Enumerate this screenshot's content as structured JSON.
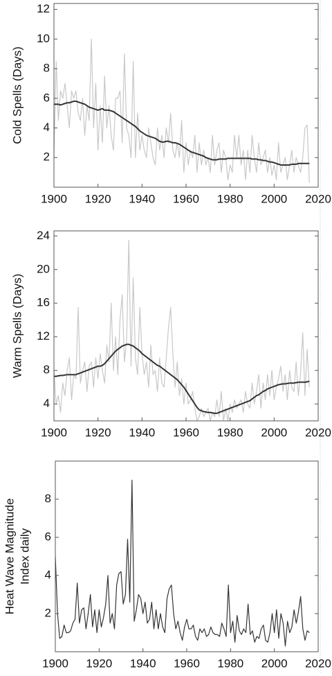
{
  "chart_data": [
    {
      "type": "line",
      "ylabel": [
        "Cold Spells (Days)"
      ],
      "x": [
        1900,
        1901,
        1902,
        1903,
        1904,
        1905,
        1906,
        1907,
        1908,
        1909,
        1910,
        1911,
        1912,
        1913,
        1914,
        1915,
        1916,
        1917,
        1918,
        1919,
        1920,
        1921,
        1922,
        1923,
        1924,
        1925,
        1926,
        1927,
        1928,
        1929,
        1930,
        1931,
        1932,
        1933,
        1934,
        1935,
        1936,
        1937,
        1938,
        1939,
        1940,
        1941,
        1942,
        1943,
        1944,
        1945,
        1946,
        1947,
        1948,
        1949,
        1950,
        1951,
        1952,
        1953,
        1954,
        1955,
        1956,
        1957,
        1958,
        1959,
        1960,
        1961,
        1962,
        1963,
        1964,
        1965,
        1966,
        1967,
        1968,
        1969,
        1970,
        1971,
        1972,
        1973,
        1974,
        1975,
        1976,
        1977,
        1978,
        1979,
        1980,
        1981,
        1982,
        1983,
        1984,
        1985,
        1986,
        1987,
        1988,
        1989,
        1990,
        1991,
        1992,
        1993,
        1994,
        1995,
        1996,
        1997,
        1998,
        1999,
        2000,
        2001,
        2002,
        2003,
        2004,
        2005,
        2006,
        2007,
        2008,
        2009,
        2010,
        2011,
        2012,
        2013,
        2014,
        2015,
        2016
      ],
      "series": [
        {
          "color": "#c8c8c8",
          "width": 1.2,
          "values": [
            2.0,
            8.5,
            4.5,
            6.5,
            6.0,
            7.0,
            5.5,
            4.0,
            6.5,
            6.0,
            6.5,
            5.0,
            4.5,
            6.0,
            3.5,
            5.5,
            4.5,
            10.0,
            4.0,
            7.0,
            2.5,
            5.5,
            3.0,
            7.5,
            4.0,
            5.5,
            3.5,
            2.5,
            6.0,
            6.0,
            6.5,
            3.0,
            9.0,
            4.0,
            3.5,
            2.0,
            8.5,
            2.0,
            5.0,
            2.5,
            3.5,
            2.5,
            2.0,
            4.0,
            3.0,
            2.0,
            1.5,
            4.0,
            2.5,
            3.5,
            2.0,
            4.0,
            3.0,
            5.0,
            2.5,
            2.0,
            3.0,
            2.0,
            4.5,
            1.0,
            3.0,
            1.5,
            2.5,
            2.0,
            3.5,
            1.0,
            3.0,
            1.5,
            2.5,
            1.5,
            2.0,
            1.0,
            3.5,
            1.5,
            2.5,
            3.0,
            1.0,
            2.5,
            2.0,
            0.5,
            1.5,
            1.0,
            3.5,
            2.0,
            3.5,
            1.5,
            2.5,
            0.5,
            2.5,
            1.0,
            3.5,
            2.0,
            1.0,
            3.0,
            1.5,
            2.0,
            2.5,
            1.0,
            2.0,
            0.8,
            1.5,
            0.5,
            3.0,
            1.0,
            1.5,
            2.0,
            0.5,
            1.5,
            2.5,
            1.0,
            2.0,
            1.5,
            1.0,
            2.0,
            4.0,
            4.2,
            0.3
          ]
        },
        {
          "color": "#333333",
          "width": 2,
          "values": [
            5.6,
            5.6,
            5.6,
            5.55,
            5.6,
            5.65,
            5.7,
            5.7,
            5.75,
            5.8,
            5.8,
            5.75,
            5.7,
            5.65,
            5.6,
            5.5,
            5.4,
            5.35,
            5.3,
            5.25,
            5.2,
            5.25,
            5.3,
            5.2,
            5.2,
            5.2,
            5.15,
            5.1,
            5.0,
            4.9,
            4.8,
            4.7,
            4.6,
            4.5,
            4.4,
            4.3,
            4.2,
            4.1,
            3.95,
            3.8,
            3.7,
            3.6,
            3.5,
            3.45,
            3.4,
            3.35,
            3.3,
            3.2,
            3.1,
            3.05,
            3.05,
            3.1,
            3.1,
            3.05,
            3.0,
            3.0,
            2.95,
            2.9,
            2.8,
            2.7,
            2.6,
            2.5,
            2.4,
            2.35,
            2.3,
            2.25,
            2.2,
            2.15,
            2.1,
            2.0,
            1.95,
            1.9,
            1.85,
            1.85,
            1.85,
            1.9,
            1.9,
            1.9,
            1.9,
            1.95,
            1.95,
            1.95,
            1.95,
            1.95,
            1.95,
            1.95,
            1.95,
            1.95,
            1.95,
            1.95,
            1.9,
            1.9,
            1.9,
            1.85,
            1.85,
            1.8,
            1.8,
            1.75,
            1.7,
            1.7,
            1.65,
            1.6,
            1.55,
            1.5,
            1.5,
            1.5,
            1.5,
            1.5,
            1.55,
            1.55,
            1.55,
            1.6,
            1.6,
            1.6,
            1.6,
            1.6,
            1.6
          ]
        }
      ],
      "xlim": [
        1900,
        2020
      ],
      "xticks": [
        1900,
        1920,
        1940,
        1960,
        1980,
        2000,
        2020
      ],
      "ylim": [
        0,
        12.4
      ],
      "yticks": [
        2,
        4,
        6,
        8,
        10,
        12
      ]
    },
    {
      "type": "line",
      "ylabel": [
        "Warm Spells (Days)"
      ],
      "x": [
        1900,
        1901,
        1902,
        1903,
        1904,
        1905,
        1906,
        1907,
        1908,
        1909,
        1910,
        1911,
        1912,
        1913,
        1914,
        1915,
        1916,
        1917,
        1918,
        1919,
        1920,
        1921,
        1922,
        1923,
        1924,
        1925,
        1926,
        1927,
        1928,
        1929,
        1930,
        1931,
        1932,
        1933,
        1934,
        1935,
        1936,
        1937,
        1938,
        1939,
        1940,
        1941,
        1942,
        1943,
        1944,
        1945,
        1946,
        1947,
        1948,
        1949,
        1950,
        1951,
        1952,
        1953,
        1954,
        1955,
        1956,
        1957,
        1958,
        1959,
        1960,
        1961,
        1962,
        1963,
        1964,
        1965,
        1966,
        1967,
        1968,
        1969,
        1970,
        1971,
        1972,
        1973,
        1974,
        1975,
        1976,
        1977,
        1978,
        1979,
        1980,
        1981,
        1982,
        1983,
        1984,
        1985,
        1986,
        1987,
        1988,
        1989,
        1990,
        1991,
        1992,
        1993,
        1994,
        1995,
        1996,
        1997,
        1998,
        1999,
        2000,
        2001,
        2002,
        2003,
        2004,
        2005,
        2006,
        2007,
        2008,
        2009,
        2010,
        2011,
        2012,
        2013,
        2014,
        2015,
        2016
      ],
      "series": [
        {
          "color": "#c8c8c8",
          "width": 1.2,
          "values": [
            8.0,
            4.0,
            5.0,
            3.0,
            6.5,
            5.0,
            8.0,
            9.5,
            4.5,
            7.5,
            7.0,
            15.5,
            6.5,
            8.0,
            9.0,
            5.5,
            8.5,
            9.0,
            6.0,
            9.5,
            7.0,
            10.0,
            8.0,
            6.5,
            11.0,
            9.0,
            16.0,
            8.0,
            12.0,
            7.5,
            14.0,
            17.0,
            9.0,
            11.5,
            23.5,
            8.5,
            19.0,
            9.5,
            7.5,
            15.5,
            10.0,
            7.5,
            9.0,
            6.0,
            11.0,
            7.5,
            8.0,
            5.5,
            9.5,
            6.5,
            6.0,
            9.5,
            13.0,
            15.5,
            10.0,
            6.0,
            9.0,
            5.0,
            7.0,
            4.0,
            6.5,
            4.0,
            4.5,
            5.5,
            3.5,
            2.0,
            2.5,
            3.5,
            2.5,
            3.0,
            3.5,
            2.0,
            3.0,
            2.5,
            4.5,
            2.5,
            5.5,
            2.0,
            3.5,
            2.0,
            4.0,
            3.0,
            4.5,
            3.5,
            4.0,
            4.5,
            3.0,
            5.5,
            4.0,
            3.5,
            6.5,
            4.0,
            5.5,
            7.5,
            3.5,
            6.5,
            4.5,
            7.5,
            5.0,
            8.0,
            4.5,
            6.0,
            7.0,
            8.5,
            5.5,
            7.5,
            4.5,
            8.0,
            6.0,
            5.5,
            9.0,
            5.0,
            7.5,
            12.5,
            5.0,
            10.5,
            6.0
          ]
        },
        {
          "color": "#333333",
          "width": 2,
          "values": [
            7.3,
            7.3,
            7.35,
            7.4,
            7.4,
            7.45,
            7.5,
            7.5,
            7.5,
            7.5,
            7.5,
            7.6,
            7.7,
            7.8,
            7.9,
            8.0,
            8.1,
            8.2,
            8.3,
            8.4,
            8.5,
            8.5,
            8.6,
            8.8,
            9.1,
            9.4,
            9.7,
            10.0,
            10.3,
            10.5,
            10.7,
            10.9,
            11.0,
            11.1,
            11.1,
            11.0,
            10.9,
            10.7,
            10.5,
            10.3,
            10.0,
            9.8,
            9.6,
            9.4,
            9.2,
            9.0,
            8.8,
            8.6,
            8.5,
            8.3,
            8.1,
            7.9,
            7.7,
            7.5,
            7.3,
            7.1,
            6.9,
            6.6,
            6.3,
            6.0,
            5.6,
            5.2,
            4.8,
            4.4,
            4.0,
            3.6,
            3.3,
            3.2,
            3.1,
            3.05,
            3.0,
            3.0,
            2.95,
            2.9,
            2.9,
            3.0,
            3.1,
            3.2,
            3.3,
            3.4,
            3.5,
            3.6,
            3.7,
            3.8,
            3.9,
            4.0,
            4.1,
            4.2,
            4.3,
            4.4,
            4.6,
            4.8,
            5.0,
            5.1,
            5.3,
            5.5,
            5.6,
            5.8,
            5.9,
            6.0,
            6.1,
            6.2,
            6.3,
            6.35,
            6.4,
            6.4,
            6.45,
            6.5,
            6.5,
            6.5,
            6.55,
            6.6,
            6.6,
            6.6,
            6.6,
            6.65,
            6.7
          ]
        }
      ],
      "xlim": [
        1900,
        2020
      ],
      "xticks": [
        1900,
        1920,
        1940,
        1960,
        1980,
        2000,
        2020
      ],
      "ylim": [
        2,
        24.6
      ],
      "yticks": [
        4,
        8,
        12,
        16,
        20,
        24
      ]
    },
    {
      "type": "line",
      "ylabel": [
        "Heat Wave Magnitude",
        "Index daily"
      ],
      "x": [
        1900,
        1901,
        1902,
        1903,
        1904,
        1905,
        1906,
        1907,
        1908,
        1909,
        1910,
        1911,
        1912,
        1913,
        1914,
        1915,
        1916,
        1917,
        1918,
        1919,
        1920,
        1921,
        1922,
        1923,
        1924,
        1925,
        1926,
        1927,
        1928,
        1929,
        1930,
        1931,
        1932,
        1933,
        1934,
        1935,
        1936,
        1937,
        1938,
        1939,
        1940,
        1941,
        1942,
        1943,
        1944,
        1945,
        1946,
        1947,
        1948,
        1949,
        1950,
        1951,
        1952,
        1953,
        1954,
        1955,
        1956,
        1957,
        1958,
        1959,
        1960,
        1961,
        1962,
        1963,
        1964,
        1965,
        1966,
        1967,
        1968,
        1969,
        1970,
        1971,
        1972,
        1973,
        1974,
        1975,
        1976,
        1977,
        1978,
        1979,
        1980,
        1981,
        1982,
        1983,
        1984,
        1985,
        1986,
        1987,
        1988,
        1989,
        1990,
        1991,
        1992,
        1993,
        1994,
        1995,
        1996,
        1997,
        1998,
        1999,
        2000,
        2001,
        2002,
        2003,
        2004,
        2005,
        2006,
        2007,
        2008,
        2009,
        2010,
        2011,
        2012,
        2013,
        2014,
        2015,
        2016
      ],
      "series": [
        {
          "color": "#333333",
          "width": 1.2,
          "values": [
            5.0,
            2.0,
            0.7,
            0.8,
            1.4,
            1.0,
            1.0,
            1.1,
            1.5,
            1.7,
            3.6,
            1.5,
            2.2,
            2.3,
            1.2,
            2.0,
            3.0,
            1.3,
            2.2,
            1.0,
            2.2,
            1.3,
            1.8,
            2.5,
            4.0,
            1.5,
            2.0,
            1.2,
            3.5,
            4.1,
            4.2,
            2.5,
            3.0,
            5.9,
            2.6,
            9.0,
            1.6,
            2.2,
            3.0,
            2.8,
            2.0,
            2.6,
            1.5,
            1.7,
            2.6,
            1.2,
            2.2,
            1.2,
            2.0,
            1.3,
            1.0,
            2.8,
            3.3,
            3.5,
            2.0,
            1.2,
            1.6,
            1.0,
            0.6,
            1.3,
            1.7,
            1.2,
            1.2,
            1.4,
            0.8,
            0.6,
            1.2,
            1.0,
            1.2,
            0.8,
            0.9,
            1.3,
            1.0,
            0.9,
            0.9,
            0.8,
            1.5,
            1.2,
            0.8,
            3.5,
            1.0,
            1.6,
            0.5,
            1.9,
            1.1,
            0.9,
            1.2,
            1.0,
            2.5,
            0.9,
            1.1,
            0.5,
            0.8,
            0.7,
            1.2,
            1.4,
            0.6,
            0.5,
            1.0,
            2.0,
            1.0,
            2.2,
            0.7,
            2.0,
            1.5,
            0.3,
            1.6,
            1.0,
            1.3,
            2.2,
            1.5,
            2.1,
            2.9,
            1.2,
            0.6,
            1.1,
            1.0
          ]
        }
      ],
      "xlim": [
        1900,
        2020
      ],
      "xticks": [
        1900,
        1920,
        1940,
        1960,
        1980,
        2000,
        2020
      ],
      "ylim": [
        0,
        10
      ],
      "yticks": [
        2,
        4,
        6,
        8
      ]
    }
  ]
}
